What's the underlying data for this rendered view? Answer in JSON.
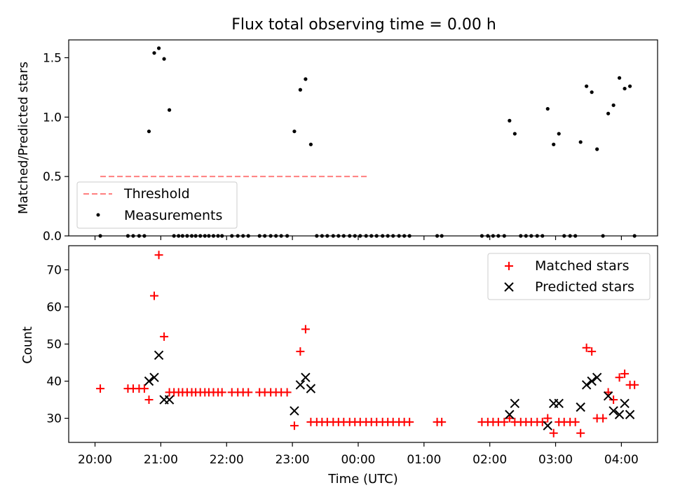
{
  "title": "Flux total observing time = 0.00 h",
  "chart_data": [
    {
      "type": "scatter",
      "ylabel": "Matched/Predicted stars",
      "ylim": [
        0,
        1.65
      ],
      "yticks": [
        0.0,
        0.5,
        1.0,
        1.5
      ],
      "ytick_labels": [
        "0.0",
        "0.5",
        "1.0",
        "1.5"
      ],
      "threshold": {
        "name": "Threshold",
        "value": 0.5,
        "x_start": 20.08,
        "x_end": 24.17,
        "color": "#ff7f7f"
      },
      "series": [
        {
          "name": "Measurements",
          "color": "#000000",
          "points": [
            [
              20.08,
              0
            ],
            [
              20.5,
              0
            ],
            [
              20.58,
              0
            ],
            [
              20.67,
              0
            ],
            [
              20.75,
              0
            ],
            [
              20.82,
              0.88
            ],
            [
              20.9,
              1.54
            ],
            [
              20.97,
              1.58
            ],
            [
              21.05,
              1.49
            ],
            [
              21.13,
              1.06
            ],
            [
              21.2,
              0
            ],
            [
              21.27,
              0
            ],
            [
              21.33,
              0
            ],
            [
              21.4,
              0
            ],
            [
              21.47,
              0
            ],
            [
              21.53,
              0
            ],
            [
              21.6,
              0
            ],
            [
              21.67,
              0
            ],
            [
              21.73,
              0
            ],
            [
              21.8,
              0
            ],
            [
              21.87,
              0
            ],
            [
              21.93,
              0
            ],
            [
              22.08,
              0
            ],
            [
              22.17,
              0
            ],
            [
              22.25,
              0
            ],
            [
              22.33,
              0
            ],
            [
              22.5,
              0
            ],
            [
              22.58,
              0
            ],
            [
              22.67,
              0
            ],
            [
              22.75,
              0
            ],
            [
              22.83,
              0
            ],
            [
              22.92,
              0
            ],
            [
              23.03,
              0.88
            ],
            [
              23.12,
              1.23
            ],
            [
              23.2,
              1.32
            ],
            [
              23.28,
              0.77
            ],
            [
              23.37,
              0
            ],
            [
              23.45,
              0
            ],
            [
              23.53,
              0
            ],
            [
              23.62,
              0
            ],
            [
              23.7,
              0
            ],
            [
              23.78,
              0
            ],
            [
              23.87,
              0
            ],
            [
              23.95,
              0
            ],
            [
              24.03,
              0
            ],
            [
              24.12,
              0
            ],
            [
              24.2,
              0
            ],
            [
              24.28,
              0
            ],
            [
              24.37,
              0
            ],
            [
              24.45,
              0
            ],
            [
              24.53,
              0
            ],
            [
              24.62,
              0
            ],
            [
              24.7,
              0
            ],
            [
              24.78,
              0
            ],
            [
              25.2,
              0
            ],
            [
              25.27,
              0
            ],
            [
              25.88,
              0
            ],
            [
              25.97,
              0
            ],
            [
              26.05,
              0
            ],
            [
              26.13,
              0
            ],
            [
              26.22,
              0
            ],
            [
              26.3,
              0.97
            ],
            [
              26.38,
              0.86
            ],
            [
              26.47,
              0
            ],
            [
              26.55,
              0
            ],
            [
              26.63,
              0
            ],
            [
              26.72,
              0
            ],
            [
              26.8,
              0
            ],
            [
              26.88,
              1.07
            ],
            [
              26.97,
              0.77
            ],
            [
              27.05,
              0.86
            ],
            [
              27.13,
              0
            ],
            [
              27.22,
              0
            ],
            [
              27.3,
              0
            ],
            [
              27.38,
              0.79
            ],
            [
              27.47,
              1.26
            ],
            [
              27.55,
              1.21
            ],
            [
              27.63,
              0.73
            ],
            [
              27.72,
              0
            ],
            [
              27.8,
              1.03
            ],
            [
              27.88,
              1.1
            ],
            [
              27.97,
              1.33
            ],
            [
              28.05,
              1.24
            ],
            [
              28.13,
              1.26
            ],
            [
              28.2,
              0
            ]
          ]
        }
      ]
    },
    {
      "type": "scatter",
      "xlabel": "Time (UTC)",
      "ylabel": "Count",
      "xlim": [
        19.6,
        28.55
      ],
      "ylim": [
        23.5,
        76.5
      ],
      "xticks": [
        20,
        21,
        22,
        23,
        24,
        25,
        26,
        27,
        28
      ],
      "xtick_labels": [
        "20:00",
        "21:00",
        "22:00",
        "23:00",
        "00:00",
        "01:00",
        "02:00",
        "03:00",
        "04:00"
      ],
      "yticks": [
        30,
        40,
        50,
        60,
        70
      ],
      "ytick_labels": [
        "30",
        "40",
        "50",
        "60",
        "70"
      ],
      "series": [
        {
          "name": "Matched stars",
          "marker": "plus",
          "color": "#ff0000",
          "points": [
            [
              20.08,
              38
            ],
            [
              20.5,
              38
            ],
            [
              20.58,
              38
            ],
            [
              20.67,
              38
            ],
            [
              20.75,
              38
            ],
            [
              20.82,
              35
            ],
            [
              20.9,
              63
            ],
            [
              20.97,
              74
            ],
            [
              21.05,
              52
            ],
            [
              21.13,
              37
            ],
            [
              21.2,
              37
            ],
            [
              21.27,
              37
            ],
            [
              21.33,
              37
            ],
            [
              21.4,
              37
            ],
            [
              21.47,
              37
            ],
            [
              21.53,
              37
            ],
            [
              21.6,
              37
            ],
            [
              21.67,
              37
            ],
            [
              21.73,
              37
            ],
            [
              21.8,
              37
            ],
            [
              21.87,
              37
            ],
            [
              21.93,
              37
            ],
            [
              22.08,
              37
            ],
            [
              22.17,
              37
            ],
            [
              22.25,
              37
            ],
            [
              22.33,
              37
            ],
            [
              22.5,
              37
            ],
            [
              22.58,
              37
            ],
            [
              22.67,
              37
            ],
            [
              22.75,
              37
            ],
            [
              22.83,
              37
            ],
            [
              22.92,
              37
            ],
            [
              23.03,
              28
            ],
            [
              23.12,
              48
            ],
            [
              23.2,
              54
            ],
            [
              23.28,
              29
            ],
            [
              23.37,
              29
            ],
            [
              23.45,
              29
            ],
            [
              23.53,
              29
            ],
            [
              23.62,
              29
            ],
            [
              23.7,
              29
            ],
            [
              23.78,
              29
            ],
            [
              23.87,
              29
            ],
            [
              23.95,
              29
            ],
            [
              24.03,
              29
            ],
            [
              24.12,
              29
            ],
            [
              24.2,
              29
            ],
            [
              24.28,
              29
            ],
            [
              24.37,
              29
            ],
            [
              24.45,
              29
            ],
            [
              24.53,
              29
            ],
            [
              24.62,
              29
            ],
            [
              24.7,
              29
            ],
            [
              24.78,
              29
            ],
            [
              25.2,
              29
            ],
            [
              25.27,
              29
            ],
            [
              25.88,
              29
            ],
            [
              25.97,
              29
            ],
            [
              26.05,
              29
            ],
            [
              26.13,
              29
            ],
            [
              26.22,
              29
            ],
            [
              26.3,
              30
            ],
            [
              26.38,
              29
            ],
            [
              26.47,
              29
            ],
            [
              26.55,
              29
            ],
            [
              26.63,
              29
            ],
            [
              26.72,
              29
            ],
            [
              26.8,
              29
            ],
            [
              26.88,
              30
            ],
            [
              26.97,
              26
            ],
            [
              27.05,
              29
            ],
            [
              27.13,
              29
            ],
            [
              27.22,
              29
            ],
            [
              27.3,
              29
            ],
            [
              27.38,
              26
            ],
            [
              27.47,
              49
            ],
            [
              27.55,
              48
            ],
            [
              27.63,
              30
            ],
            [
              27.72,
              30
            ],
            [
              27.8,
              37
            ],
            [
              27.88,
              35
            ],
            [
              27.97,
              41
            ],
            [
              28.05,
              42
            ],
            [
              28.13,
              39
            ],
            [
              28.2,
              39
            ]
          ]
        },
        {
          "name": "Predicted stars",
          "marker": "x",
          "color": "#000000",
          "points": [
            [
              20.82,
              40
            ],
            [
              20.9,
              41
            ],
            [
              20.97,
              47
            ],
            [
              21.05,
              35
            ],
            [
              21.13,
              35
            ],
            [
              23.03,
              32
            ],
            [
              23.12,
              39
            ],
            [
              23.2,
              41
            ],
            [
              23.28,
              38
            ],
            [
              26.3,
              31
            ],
            [
              26.38,
              34
            ],
            [
              26.88,
              28
            ],
            [
              26.97,
              34
            ],
            [
              27.05,
              34
            ],
            [
              27.38,
              33
            ],
            [
              27.47,
              39
            ],
            [
              27.55,
              40
            ],
            [
              27.63,
              41
            ],
            [
              27.8,
              36
            ],
            [
              27.88,
              32
            ],
            [
              27.97,
              31
            ],
            [
              28.05,
              34
            ],
            [
              28.13,
              31
            ]
          ]
        }
      ]
    }
  ]
}
